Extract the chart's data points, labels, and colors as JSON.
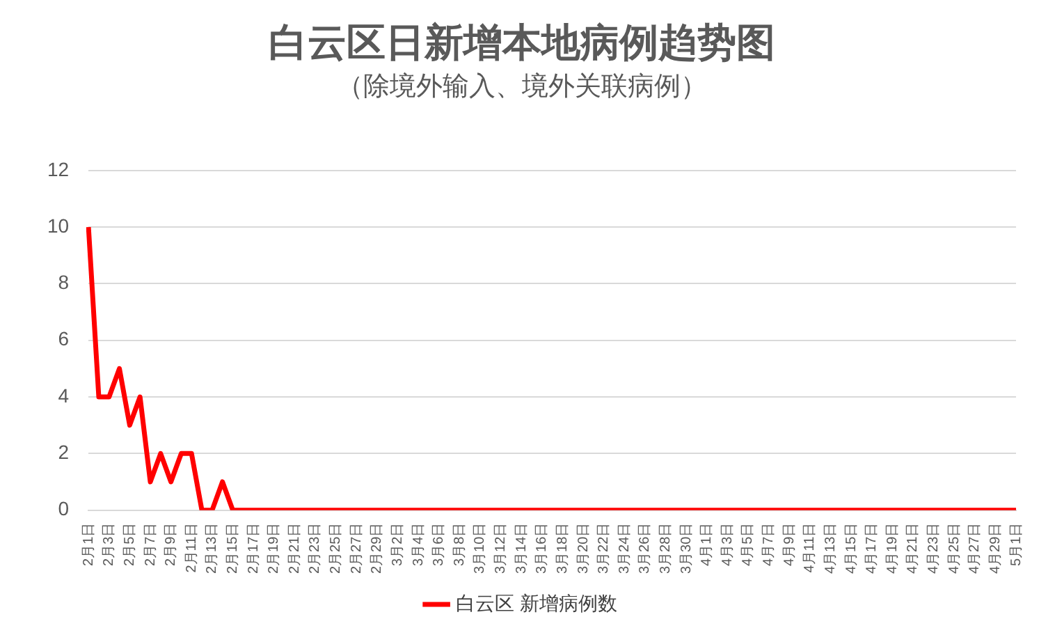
{
  "chart_data": {
    "type": "line",
    "title": "白云区日新增本地病例趋势图",
    "subtitle": "（除境外输入、境外关联病例）",
    "categories": [
      "2月1日",
      null,
      "2月3日",
      null,
      "2月5日",
      null,
      "2月7日",
      null,
      "2月9日",
      null,
      "2月11日",
      null,
      "2月13日",
      null,
      "2月15日",
      null,
      "2月17日",
      null,
      "2月19日",
      null,
      "2月21日",
      null,
      "2月23日",
      null,
      "2月25日",
      null,
      "2月27日",
      null,
      "2月29日",
      null,
      "3月2日",
      null,
      "3月4日",
      null,
      "3月6日",
      null,
      "3月8日",
      null,
      "3月10日",
      null,
      "3月12日",
      null,
      "3月14日",
      null,
      "3月16日",
      null,
      "3月18日",
      null,
      "3月20日",
      null,
      "3月22日",
      null,
      "3月24日",
      null,
      "3月26日",
      null,
      "3月28日",
      null,
      "3月30日",
      null,
      "4月1日",
      null,
      "4月3日",
      null,
      "4月5日",
      null,
      "4月7日",
      null,
      "4月9日",
      null,
      "4月11日",
      null,
      "4月13日",
      null,
      "4月15日",
      null,
      "4月17日",
      null,
      "4月19日",
      null,
      "4月21日",
      null,
      "4月23日",
      null,
      "4月25日",
      null,
      "4月27日",
      null,
      "4月29日",
      null,
      "5月1日"
    ],
    "series": [
      {
        "name": "白云区 新增病例数",
        "color": "#ff0000",
        "values": [
          10,
          4,
          4,
          5,
          3,
          4,
          1,
          2,
          1,
          2,
          2,
          0,
          0,
          1,
          0,
          0,
          0,
          0,
          0,
          0,
          0,
          0,
          0,
          0,
          0,
          0,
          0,
          0,
          0,
          0,
          0,
          0,
          0,
          0,
          0,
          0,
          0,
          0,
          0,
          0,
          0,
          0,
          0,
          0,
          0,
          0,
          0,
          0,
          0,
          0,
          0,
          0,
          0,
          0,
          0,
          0,
          0,
          0,
          0,
          0,
          0,
          0,
          0,
          0,
          0,
          0,
          0,
          0,
          0,
          0,
          0,
          0,
          0,
          0,
          0,
          0,
          0,
          0,
          0,
          0,
          0,
          0,
          0,
          0,
          0,
          0,
          0,
          0,
          0,
          0,
          0
        ]
      }
    ],
    "ylim": [
      0,
      12
    ],
    "yticks": [
      0,
      2,
      4,
      6,
      8,
      10,
      12
    ],
    "grid": "y",
    "legend": "bottom",
    "marker": "none",
    "line_style": "solid"
  }
}
